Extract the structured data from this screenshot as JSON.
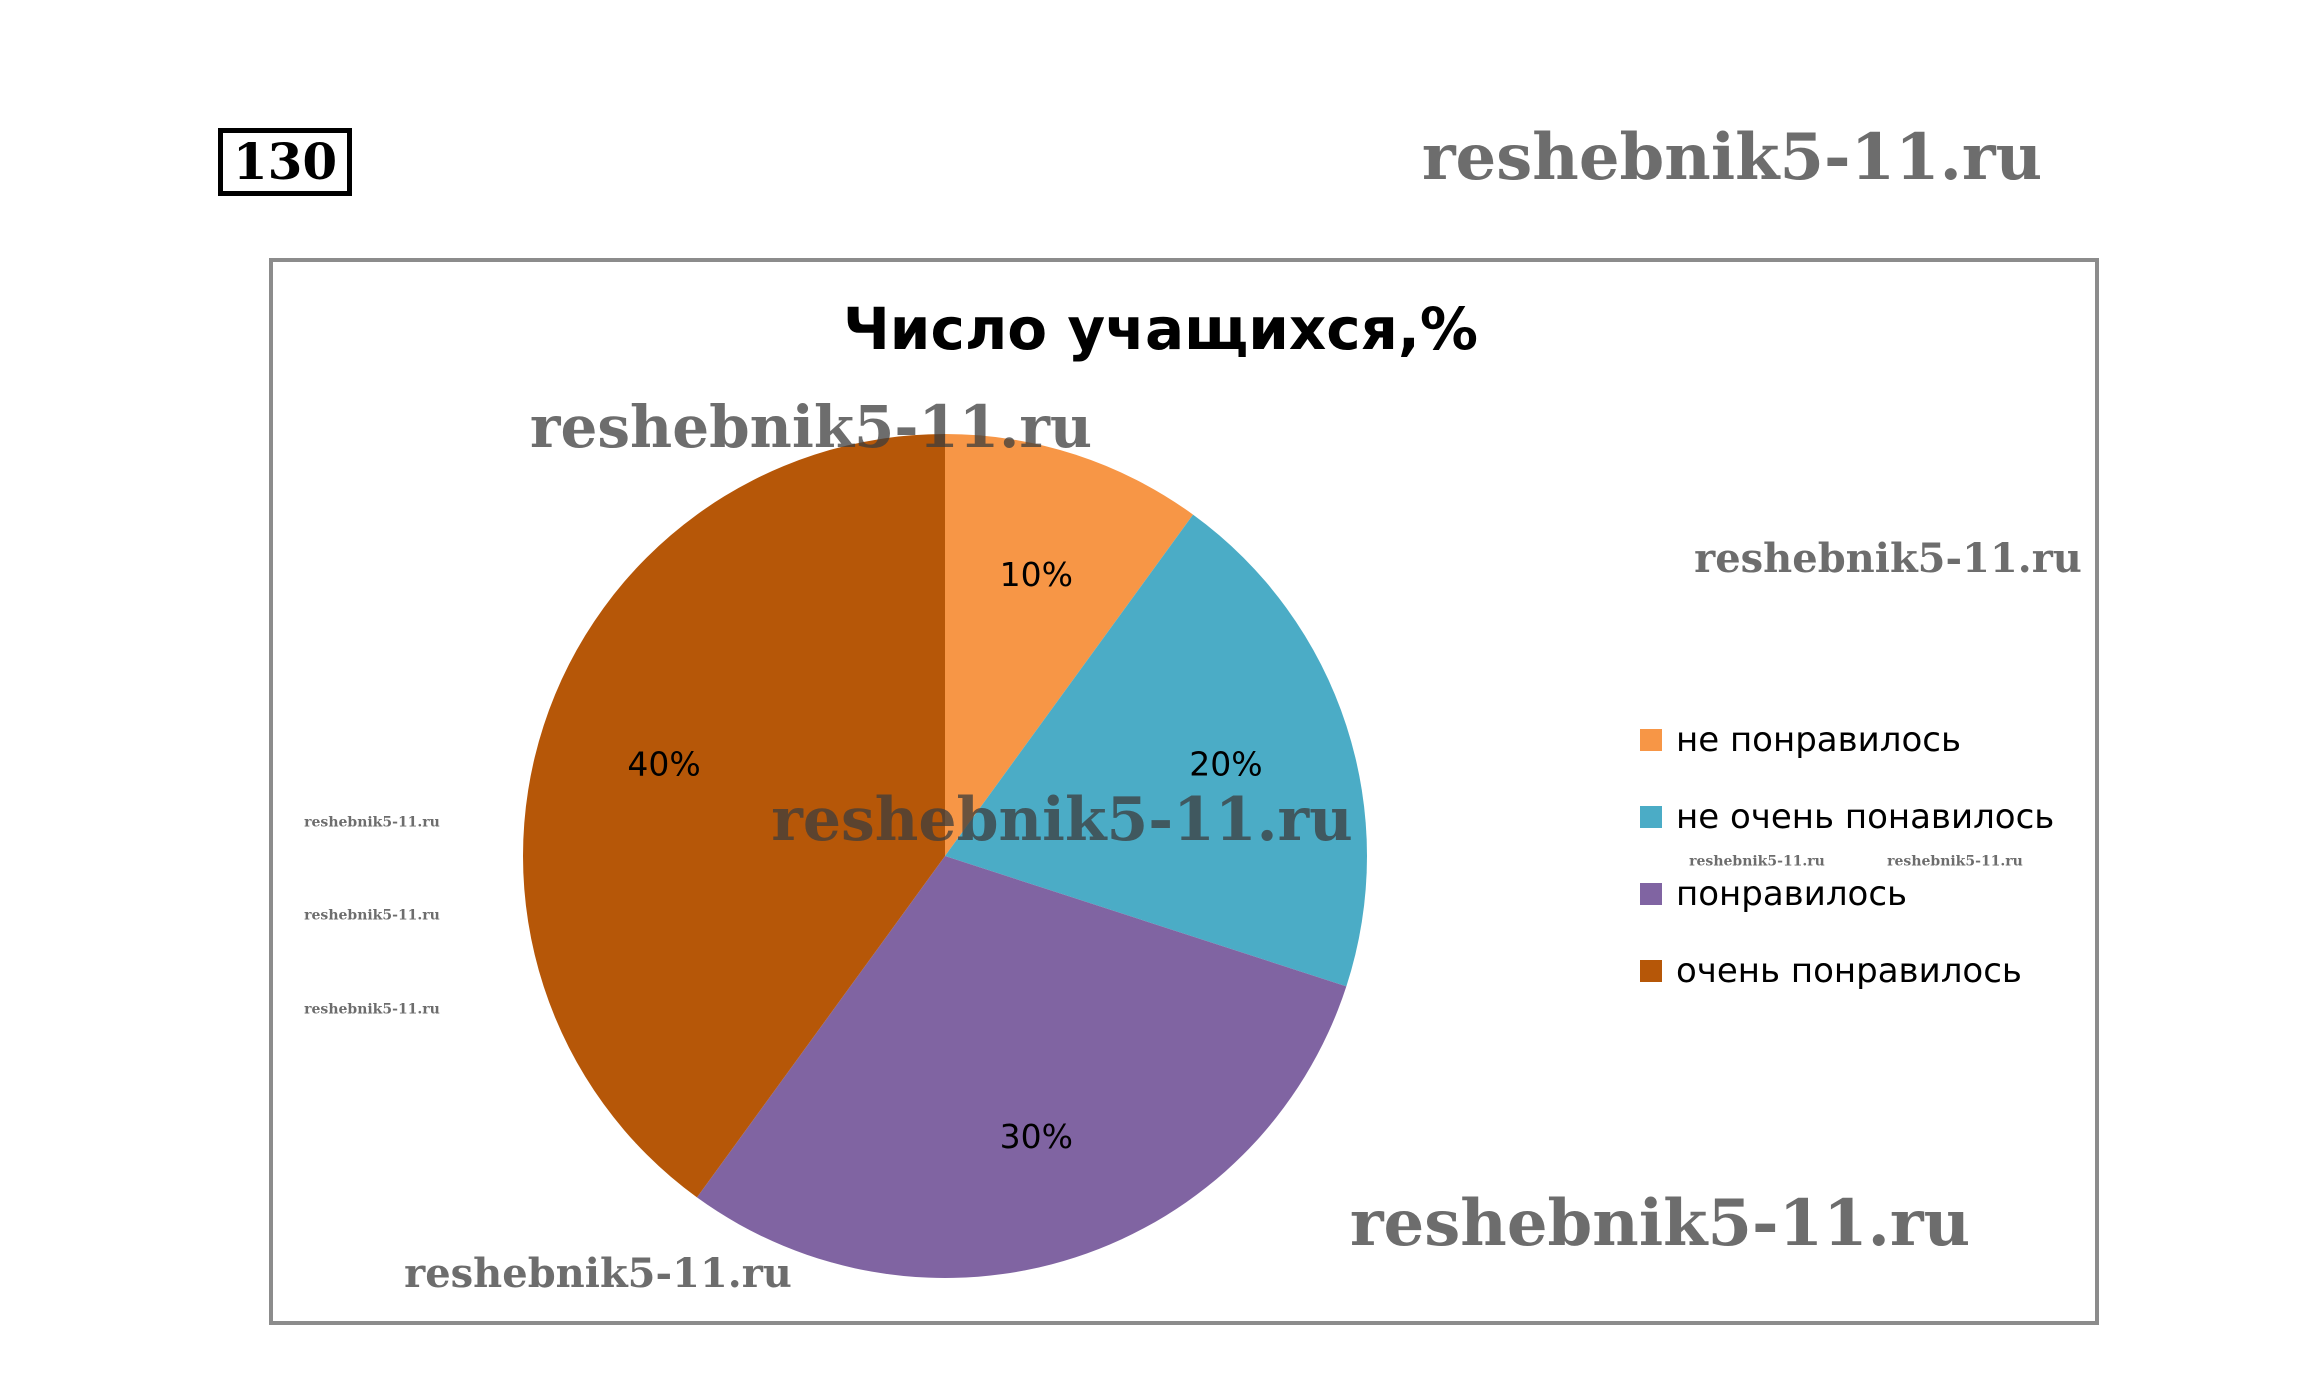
{
  "problem_number": "130",
  "watermark": "reshebnik5-11.ru",
  "chart_data": {
    "type": "pie",
    "title": "Число учащихся,%",
    "categories": [
      "не понравилось",
      "не очень понавилось",
      "понравилось",
      "очень понравилось"
    ],
    "values": [
      10,
      20,
      30,
      40
    ],
    "labels": [
      "10%",
      "20%",
      "30%",
      "40%"
    ],
    "colors": [
      "#F79646",
      "#4BACC6",
      "#8064A2",
      "#B65708"
    ],
    "legend": "right",
    "start_angle": "top, clockwise"
  }
}
